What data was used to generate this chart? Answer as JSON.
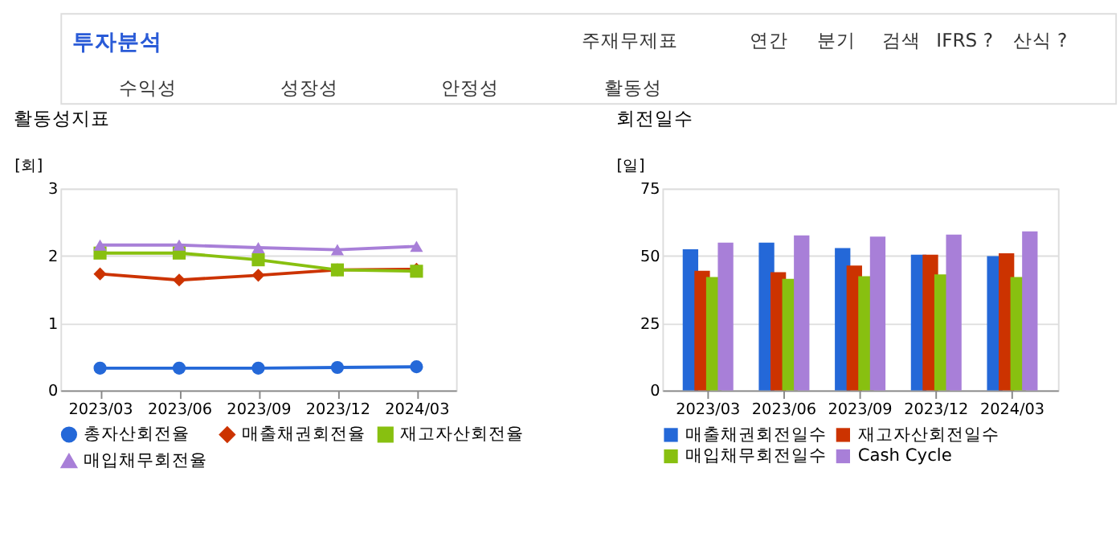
{
  "chart_data": [
    {
      "type": "line",
      "title": "활동성지표",
      "ylabel": "[회]",
      "annotations": [
        "투자분석",
        "주재무제표",
        "연간",
        "분기",
        "검색",
        "IFRS ?",
        "산식 ?",
        "수익성",
        "성장성",
        "안정성",
        "활동성"
      ],
      "categories": [
        "2023/03",
        "2023/06",
        "2023/09",
        "2023/12",
        "2024/03"
      ],
      "series": [
        {
          "name": "총자산회전율",
          "color": "#2468d8",
          "marker": "circle",
          "values": [
            0.33,
            0.33,
            0.33,
            0.34,
            0.35
          ]
        },
        {
          "name": "매출채권회전율",
          "color": "#cc3300",
          "marker": "diamond",
          "values": [
            1.73,
            1.64,
            1.71,
            1.79,
            1.8
          ]
        },
        {
          "name": "재고자산회전율",
          "color": "#88c010",
          "marker": "square",
          "values": [
            2.04,
            2.04,
            1.94,
            1.79,
            1.77
          ]
        },
        {
          "name": "매입채무회전율",
          "color": "#a87fd8",
          "marker": "triangle",
          "values": [
            2.16,
            2.16,
            2.12,
            2.09,
            2.14
          ]
        }
      ],
      "ylim": [
        0,
        3
      ],
      "yticks": [
        0,
        1,
        2,
        3
      ],
      "grid": "y",
      "legend": "bottom"
    },
    {
      "type": "bar",
      "title": "회전일수",
      "ylabel": "[일]",
      "categories": [
        "2023/03",
        "2023/06",
        "2023/09",
        "2023/12",
        "2024/03"
      ],
      "series": [
        {
          "name": "매출채권회전일수",
          "color": "#2468d8",
          "values": [
            52.4,
            54.9,
            52.9,
            50.4,
            49.9
          ]
        },
        {
          "name": "재고자산회전일수",
          "color": "#cc3300",
          "values": [
            44.4,
            43.9,
            46.4,
            50.4,
            50.9
          ]
        },
        {
          "name": "매입채무회전일수",
          "color": "#88c010",
          "values": [
            42.1,
            41.4,
            42.4,
            43.1,
            42.1
          ]
        },
        {
          "name": "Cash Cycle",
          "color": "#a87fd8",
          "values": [
            54.9,
            57.6,
            57.1,
            57.9,
            59.1
          ]
        }
      ],
      "ylim": [
        0,
        75
      ],
      "yticks": [
        0,
        25,
        50,
        75
      ],
      "grid": "y",
      "legend": "bottom"
    }
  ]
}
